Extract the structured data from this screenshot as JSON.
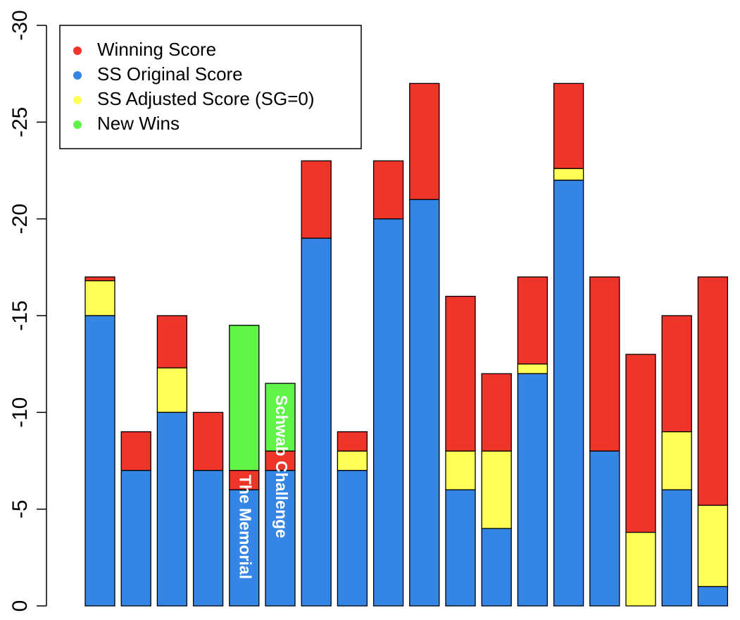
{
  "chart_data": {
    "type": "bar",
    "stacked": true,
    "y_axis": {
      "range": [
        0,
        -30
      ],
      "reversed": true,
      "ticks": [
        0,
        -5,
        -10,
        -15,
        -20,
        -25,
        -30
      ],
      "tick_labels": [
        "0",
        "-5",
        "-10",
        "-15",
        "-20",
        "-25",
        "-30"
      ]
    },
    "grid": false,
    "legend": {
      "position": "top-left",
      "items": [
        {
          "label": "Winning Score",
          "color": "#ef3429"
        },
        {
          "label": "SS Original Score",
          "color": "#3585e4"
        },
        {
          "label": "SS Adjusted Score (SG=0)",
          "color": "#ffff55"
        },
        {
          "label": "New Wins",
          "color": "#60f449"
        }
      ]
    },
    "colors": {
      "winning": "#ef3429",
      "original": "#3585e4",
      "adjusted": "#ffff55",
      "new_wins": "#60f449"
    },
    "bars": [
      {
        "winning": -17,
        "adjusted": -16.8,
        "original": -15
      },
      {
        "winning": -9,
        "original": -7
      },
      {
        "winning": -15,
        "adjusted": -12.3,
        "original": -10
      },
      {
        "winning": -10,
        "original": -7
      },
      {
        "winning": -7,
        "original": -6,
        "new_win": -14.5,
        "label": "The Memorial"
      },
      {
        "winning": -8,
        "original": -7,
        "new_win": -11.5,
        "label": "Schwab Challenge"
      },
      {
        "winning": -23,
        "original": -19
      },
      {
        "winning": -9,
        "adjusted": -8,
        "original": -7
      },
      {
        "winning": -23,
        "original": -20
      },
      {
        "winning": -27,
        "original": -21
      },
      {
        "winning": -16,
        "adjusted": -8,
        "original": -6
      },
      {
        "winning": -12,
        "adjusted": -8,
        "original": -4
      },
      {
        "winning": -17,
        "adjusted": -12.5,
        "original": -12
      },
      {
        "winning": -27,
        "adjusted": -22.6,
        "original": -22
      },
      {
        "winning": -17,
        "original": -8
      },
      {
        "winning": -13,
        "adjusted": -3.8,
        "original": 0
      },
      {
        "winning": -15,
        "adjusted": -9,
        "original": -6
      },
      {
        "winning": -17,
        "adjusted": -5.2,
        "original": -1
      }
    ]
  }
}
